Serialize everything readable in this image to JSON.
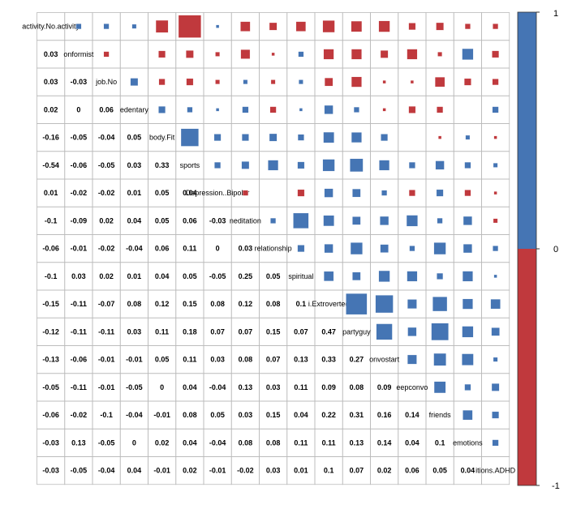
{
  "colors": {
    "positive": "#4575b4",
    "negative": "#c0393d",
    "grid": "#bbbbbb",
    "text": "#000000"
  },
  "chart_data": {
    "type": "heatmap",
    "style": "corrplot-square-lower-numbers",
    "title": "",
    "variables": [
      "activity.No.activity",
      "nonconformist",
      "job.No",
      "sedentary",
      "body.Fit",
      "sports",
      "Depression..Bipolar",
      "meditation",
      "relationship",
      "spiritual",
      "i.Extroverted",
      "partyguy",
      "convostart",
      "deepconvo",
      "friends",
      "emotions",
      "conditions.ADHD"
    ],
    "diagonal_labels": [
      "activity.No.activity",
      "onformist",
      "job.No",
      "edentary",
      "body.Fit",
      "sports",
      "Depression..Bipolar",
      "neditation",
      "relationship",
      "spiritual",
      "i.Extroverted",
      "partyguy",
      "onvostart",
      "eepconvo",
      "friends",
      "emotions",
      "itions.ADHD"
    ],
    "lower_labels": [
      [],
      [
        "0.03"
      ],
      [
        "0.03",
        "-0.03"
      ],
      [
        "0.02",
        "0",
        "0.06"
      ],
      [
        "-0.16",
        "-0.05",
        "-0.04",
        "0.05"
      ],
      [
        "-0.54",
        "-0.06",
        "-0.05",
        "0.03",
        "0.33"
      ],
      [
        "0.01",
        "-0.02",
        "-0.02",
        "0.01",
        "0.05",
        "0.04"
      ],
      [
        "-0.1",
        "-0.09",
        "0.02",
        "0.04",
        "0.05",
        "0.06",
        "-0.03"
      ],
      [
        "-0.06",
        "-0.01",
        "-0.02",
        "-0.04",
        "0.06",
        "0.11",
        "0",
        "0.03"
      ],
      [
        "-0.1",
        "0.03",
        "0.02",
        "0.01",
        "0.04",
        "0.05",
        "-0.05",
        "0.25",
        "0.05"
      ],
      [
        "-0.15",
        "-0.11",
        "-0.07",
        "0.08",
        "0.12",
        "0.15",
        "0.08",
        "0.12",
        "0.08",
        "0.1"
      ],
      [
        "-0.12",
        "-0.11",
        "-0.11",
        "0.03",
        "0.11",
        "0.18",
        "0.07",
        "0.07",
        "0.15",
        "0.07",
        "0.47"
      ],
      [
        "-0.13",
        "-0.06",
        "-0.01",
        "-0.01",
        "0.05",
        "0.11",
        "0.03",
        "0.08",
        "0.07",
        "0.13",
        "0.33",
        "0.27"
      ],
      [
        "-0.05",
        "-0.11",
        "-0.01",
        "-0.05",
        "0",
        "0.04",
        "-0.04",
        "0.13",
        "0.03",
        "0.11",
        "0.09",
        "0.08",
        "0.09"
      ],
      [
        "-0.06",
        "-0.02",
        "-0.1",
        "-0.04",
        "-0.01",
        "0.08",
        "0.05",
        "0.03",
        "0.15",
        "0.04",
        "0.22",
        "0.31",
        "0.16",
        "0.14"
      ],
      [
        "-0.03",
        "0.13",
        "-0.05",
        "0",
        "0.02",
        "0.04",
        "-0.04",
        "0.08",
        "0.08",
        "0.11",
        "0.11",
        "0.13",
        "0.14",
        "0.04",
        "0.1"
      ],
      [
        "-0.03",
        "-0.05",
        "-0.04",
        "0.04",
        "-0.01",
        "0.02",
        "-0.01",
        "-0.02",
        "0.03",
        "0.01",
        "0.1",
        "0.07",
        "0.02",
        "0.06",
        "0.05",
        "0.04"
      ]
    ],
    "upper_values": [
      [],
      [
        0.03
      ],
      [
        0.03,
        -0.03
      ],
      [
        0.02,
        0,
        0.06
      ],
      [
        -0.16,
        -0.05,
        -0.04,
        0.05
      ],
      [
        -0.54,
        -0.06,
        -0.05,
        0.03,
        0.33
      ],
      [
        0.01,
        -0.02,
        -0.02,
        0.01,
        0.05,
        0.04
      ],
      [
        -0.1,
        -0.09,
        0.02,
        0.04,
        0.05,
        0.06,
        -0.03
      ],
      [
        -0.06,
        -0.01,
        -0.02,
        -0.04,
        0.06,
        0.11,
        0,
        0.03
      ],
      [
        -0.1,
        0.03,
        0.02,
        0.01,
        0.04,
        0.05,
        -0.05,
        0.25,
        0.05
      ],
      [
        -0.15,
        -0.11,
        -0.07,
        0.08,
        0.12,
        0.15,
        0.08,
        0.12,
        0.08,
        0.1
      ],
      [
        -0.12,
        -0.11,
        -0.11,
        0.03,
        0.11,
        0.18,
        0.07,
        0.07,
        0.15,
        0.07,
        0.47
      ],
      [
        -0.13,
        -0.06,
        -0.01,
        -0.01,
        0.05,
        0.11,
        0.03,
        0.08,
        0.07,
        0.13,
        0.33,
        0.27
      ],
      [
        -0.05,
        -0.11,
        -0.01,
        -0.05,
        0,
        0.04,
        -0.04,
        0.13,
        0.03,
        0.11,
        0.09,
        0.08,
        0.09
      ],
      [
        -0.06,
        -0.02,
        -0.1,
        -0.04,
        -0.01,
        0.08,
        0.05,
        0.03,
        0.15,
        0.04,
        0.22,
        0.31,
        0.16,
        0.14
      ],
      [
        -0.03,
        0.13,
        -0.05,
        0,
        0.02,
        0.04,
        -0.04,
        0.08,
        0.08,
        0.11,
        0.11,
        0.13,
        0.14,
        0.04,
        0.1
      ],
      [
        -0.03,
        -0.05,
        -0.04,
        0.04,
        -0.01,
        0.02,
        -0.01,
        -0.02,
        0.03,
        0.01,
        0.1,
        0.07,
        0.02,
        0.06,
        0.05,
        0.04
      ]
    ],
    "colorbar": {
      "range": [
        -1,
        1
      ],
      "ticks": [
        "1",
        "0",
        "-1"
      ],
      "placement": "right"
    }
  }
}
